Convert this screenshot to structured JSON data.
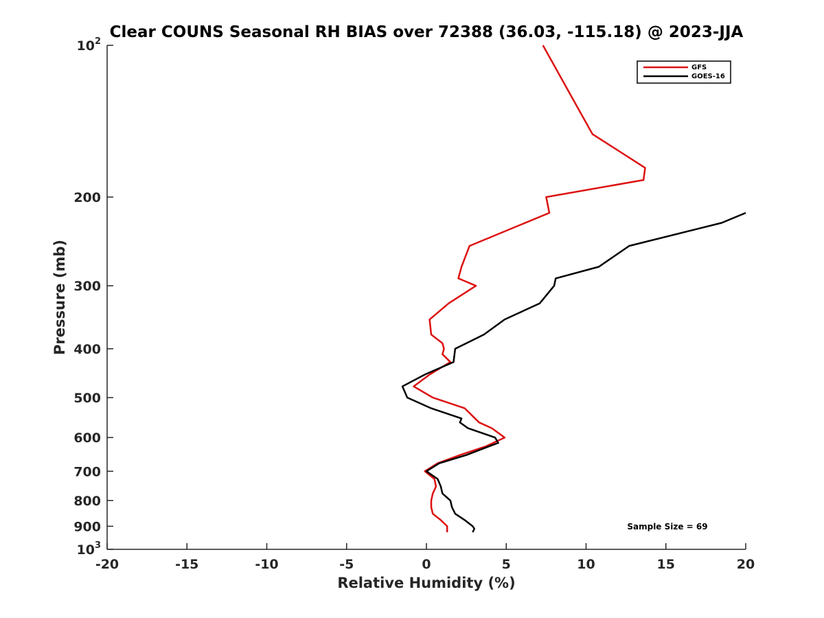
{
  "chart_data": {
    "type": "line",
    "title": "Clear COUNS Seasonal RH BIAS over 72388 (36.03, -115.18) @ 2023-JJA",
    "xlabel": "Relative Humidity (%)",
    "ylabel": "Pressure (mb)",
    "xlim": [
      -20,
      20
    ],
    "ylim": [
      100,
      1000
    ],
    "y_scale": "log",
    "y_reversed": true,
    "grid": false,
    "legend_position": "top-right",
    "x_ticks": [
      "-20",
      "-15",
      "-10",
      "-5",
      "0",
      "5",
      "10",
      "15",
      "20"
    ],
    "y_ticks": [
      {
        "value": 100,
        "base": "10",
        "exp": "2"
      },
      {
        "value": 200,
        "label": "200"
      },
      {
        "value": 300,
        "label": "300"
      },
      {
        "value": 400,
        "label": "400"
      },
      {
        "value": 500,
        "label": "500"
      },
      {
        "value": 600,
        "label": "600"
      },
      {
        "value": 700,
        "label": "700"
      },
      {
        "value": 800,
        "label": "800"
      },
      {
        "value": 900,
        "label": "900"
      },
      {
        "value": 1000,
        "base": "10",
        "exp": "3"
      }
    ],
    "annotation": "Sample Size = 69",
    "series": [
      {
        "name": "GFS",
        "color": "#dd1111",
        "points": [
          [
            7.3,
            100
          ],
          [
            9.0,
            125
          ],
          [
            10.4,
            150
          ],
          [
            13.7,
            175
          ],
          [
            13.6,
            185
          ],
          [
            7.5,
            200
          ],
          [
            7.7,
            215
          ],
          [
            2.7,
            250
          ],
          [
            2.2,
            275
          ],
          [
            2.0,
            290
          ],
          [
            3.1,
            300
          ],
          [
            1.4,
            325
          ],
          [
            0.2,
            350
          ],
          [
            0.3,
            375
          ],
          [
            1.0,
            390
          ],
          [
            1.1,
            400
          ],
          [
            1.0,
            410
          ],
          [
            1.5,
            425
          ],
          [
            0.2,
            450
          ],
          [
            -0.8,
            475
          ],
          [
            0.4,
            500
          ],
          [
            2.4,
            525
          ],
          [
            3.3,
            560
          ],
          [
            4.1,
            575
          ],
          [
            4.9,
            600
          ],
          [
            3.7,
            625
          ],
          [
            2.1,
            650
          ],
          [
            0.7,
            675
          ],
          [
            -0.1,
            700
          ],
          [
            0.5,
            725
          ],
          [
            0.6,
            750
          ],
          [
            0.4,
            775
          ],
          [
            0.3,
            800
          ],
          [
            0.3,
            825
          ],
          [
            0.4,
            850
          ],
          [
            0.9,
            875
          ],
          [
            1.3,
            900
          ],
          [
            1.3,
            925
          ]
        ]
      },
      {
        "name": "GOES-16",
        "color": "#000000",
        "points": [
          [
            20.0,
            215
          ],
          [
            18.5,
            225
          ],
          [
            12.7,
            250
          ],
          [
            10.8,
            275
          ],
          [
            8.1,
            290
          ],
          [
            8.0,
            300
          ],
          [
            7.1,
            325
          ],
          [
            4.9,
            350
          ],
          [
            3.6,
            375
          ],
          [
            1.8,
            400
          ],
          [
            1.7,
            425
          ],
          [
            -0.1,
            450
          ],
          [
            -1.5,
            475
          ],
          [
            -1.2,
            500
          ],
          [
            0.3,
            525
          ],
          [
            2.2,
            550
          ],
          [
            2.1,
            560
          ],
          [
            2.6,
            575
          ],
          [
            4.3,
            600
          ],
          [
            4.5,
            615
          ],
          [
            3.9,
            625
          ],
          [
            2.5,
            650
          ],
          [
            0.8,
            675
          ],
          [
            0.0,
            700
          ],
          [
            0.7,
            725
          ],
          [
            0.9,
            750
          ],
          [
            1.0,
            775
          ],
          [
            1.5,
            800
          ],
          [
            1.6,
            825
          ],
          [
            1.8,
            850
          ],
          [
            2.4,
            875
          ],
          [
            2.9,
            900
          ],
          [
            3.0,
            910
          ],
          [
            2.9,
            925
          ]
        ]
      }
    ]
  }
}
